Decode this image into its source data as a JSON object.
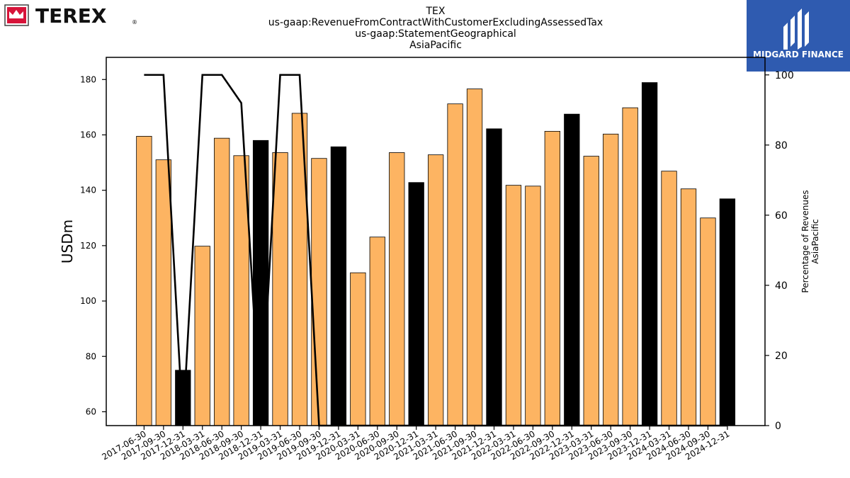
{
  "brand": {
    "left_logo_text": "TEREX",
    "right_logo_text": "MIDGARD FINANCE"
  },
  "chart_data": {
    "type": "bar",
    "title_lines": [
      "TEX",
      "us-gaap:RevenueFromContractWithCustomerExcludingAssessedTax",
      "us-gaap:StatementGeographical",
      "AsiaPacific"
    ],
    "ylabel": "USDm",
    "y2label_lines": [
      "Percentage of Revenues",
      "AsiaPacific"
    ],
    "ylim": [
      55,
      188
    ],
    "y2lim": [
      0,
      105
    ],
    "yticks": [
      60,
      80,
      100,
      120,
      140,
      160,
      180
    ],
    "y2ticks": [
      0,
      20,
      40,
      60,
      80,
      100
    ],
    "categories": [
      "2017-06-30",
      "2017-09-30",
      "2017-12-31",
      "2018-03-31",
      "2018-06-30",
      "2018-09-30",
      "2018-12-31",
      "2019-03-31",
      "2019-06-30",
      "2019-09-30",
      "2019-12-31",
      "2020-03-31",
      "2020-06-30",
      "2020-09-30",
      "2020-12-31",
      "2021-03-31",
      "2021-06-30",
      "2021-09-30",
      "2021-12-31",
      "2022-03-31",
      "2022-06-30",
      "2022-09-30",
      "2022-12-31",
      "2023-03-31",
      "2023-06-30",
      "2023-09-30",
      "2023-12-31",
      "2024-03-31",
      "2024-06-30",
      "2024-09-30",
      "2024-12-31"
    ],
    "series": [
      {
        "values": [
          159.5,
          151,
          75,
          119.8,
          158.8,
          152.5,
          158,
          153.6,
          167.8,
          151.5,
          155.7,
          110.2,
          123.1,
          153.6,
          142.8,
          152.8,
          171.2,
          176.6,
          162.2,
          141.8,
          141.5,
          161.3,
          167.5,
          152.3,
          160.3,
          169.8,
          178.9,
          146.9,
          140.5,
          130,
          136.9
        ]
      },
      {
        "axis": "right",
        "type": "line",
        "values": [
          100,
          100,
          0,
          100,
          100,
          92,
          0,
          100,
          100,
          0,
          0,
          0,
          0,
          0,
          0,
          0,
          0,
          0,
          0,
          0,
          0,
          0,
          0,
          0,
          0,
          0,
          0,
          0,
          0,
          0,
          0
        ]
      }
    ],
    "highlight_indices": [
      2,
      6,
      10,
      14,
      18,
      22,
      26,
      30
    ],
    "colors": {
      "bar": "#fdb462",
      "bar_highlight": "#000000",
      "line": "#000000",
      "logo_red": "#d7143a",
      "logo_blue": "#2f5bb0"
    }
  }
}
